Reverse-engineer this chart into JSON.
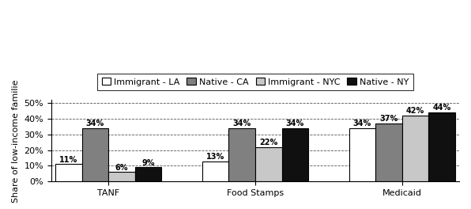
{
  "categories": [
    "TANF",
    "Food Stamps",
    "Medicaid"
  ],
  "series": [
    {
      "label": "Immigrant - LA",
      "values": [
        11,
        13,
        34
      ],
      "color": "#ffffff",
      "hatch": "",
      "edgecolor": "#000000"
    },
    {
      "label": "Native - CA",
      "values": [
        34,
        34,
        37
      ],
      "color": "#808080",
      "hatch": "",
      "edgecolor": "#000000"
    },
    {
      "label": "Immigrant - NYC",
      "values": [
        6,
        22,
        42
      ],
      "color": "#c8c8c8",
      "hatch": "",
      "edgecolor": "#000000"
    },
    {
      "label": "Native - NY",
      "values": [
        9,
        34,
        44
      ],
      "color": "#101010",
      "hatch": "",
      "edgecolor": "#000000"
    }
  ],
  "ylabel": "Share of low-income familie",
  "ylim": [
    0,
    52
  ],
  "yticks": [
    0,
    10,
    20,
    30,
    40,
    50
  ],
  "ytick_labels": [
    "0%",
    "10%",
    "20%",
    "30%",
    "40%",
    "50%"
  ],
  "bar_width": 0.13,
  "group_centers": [
    0.28,
    1.0,
    1.72
  ],
  "background_color": "#ffffff",
  "font_size_labels": 7,
  "font_size_axis": 8,
  "font_size_legend": 8,
  "font_size_ylabel": 8
}
